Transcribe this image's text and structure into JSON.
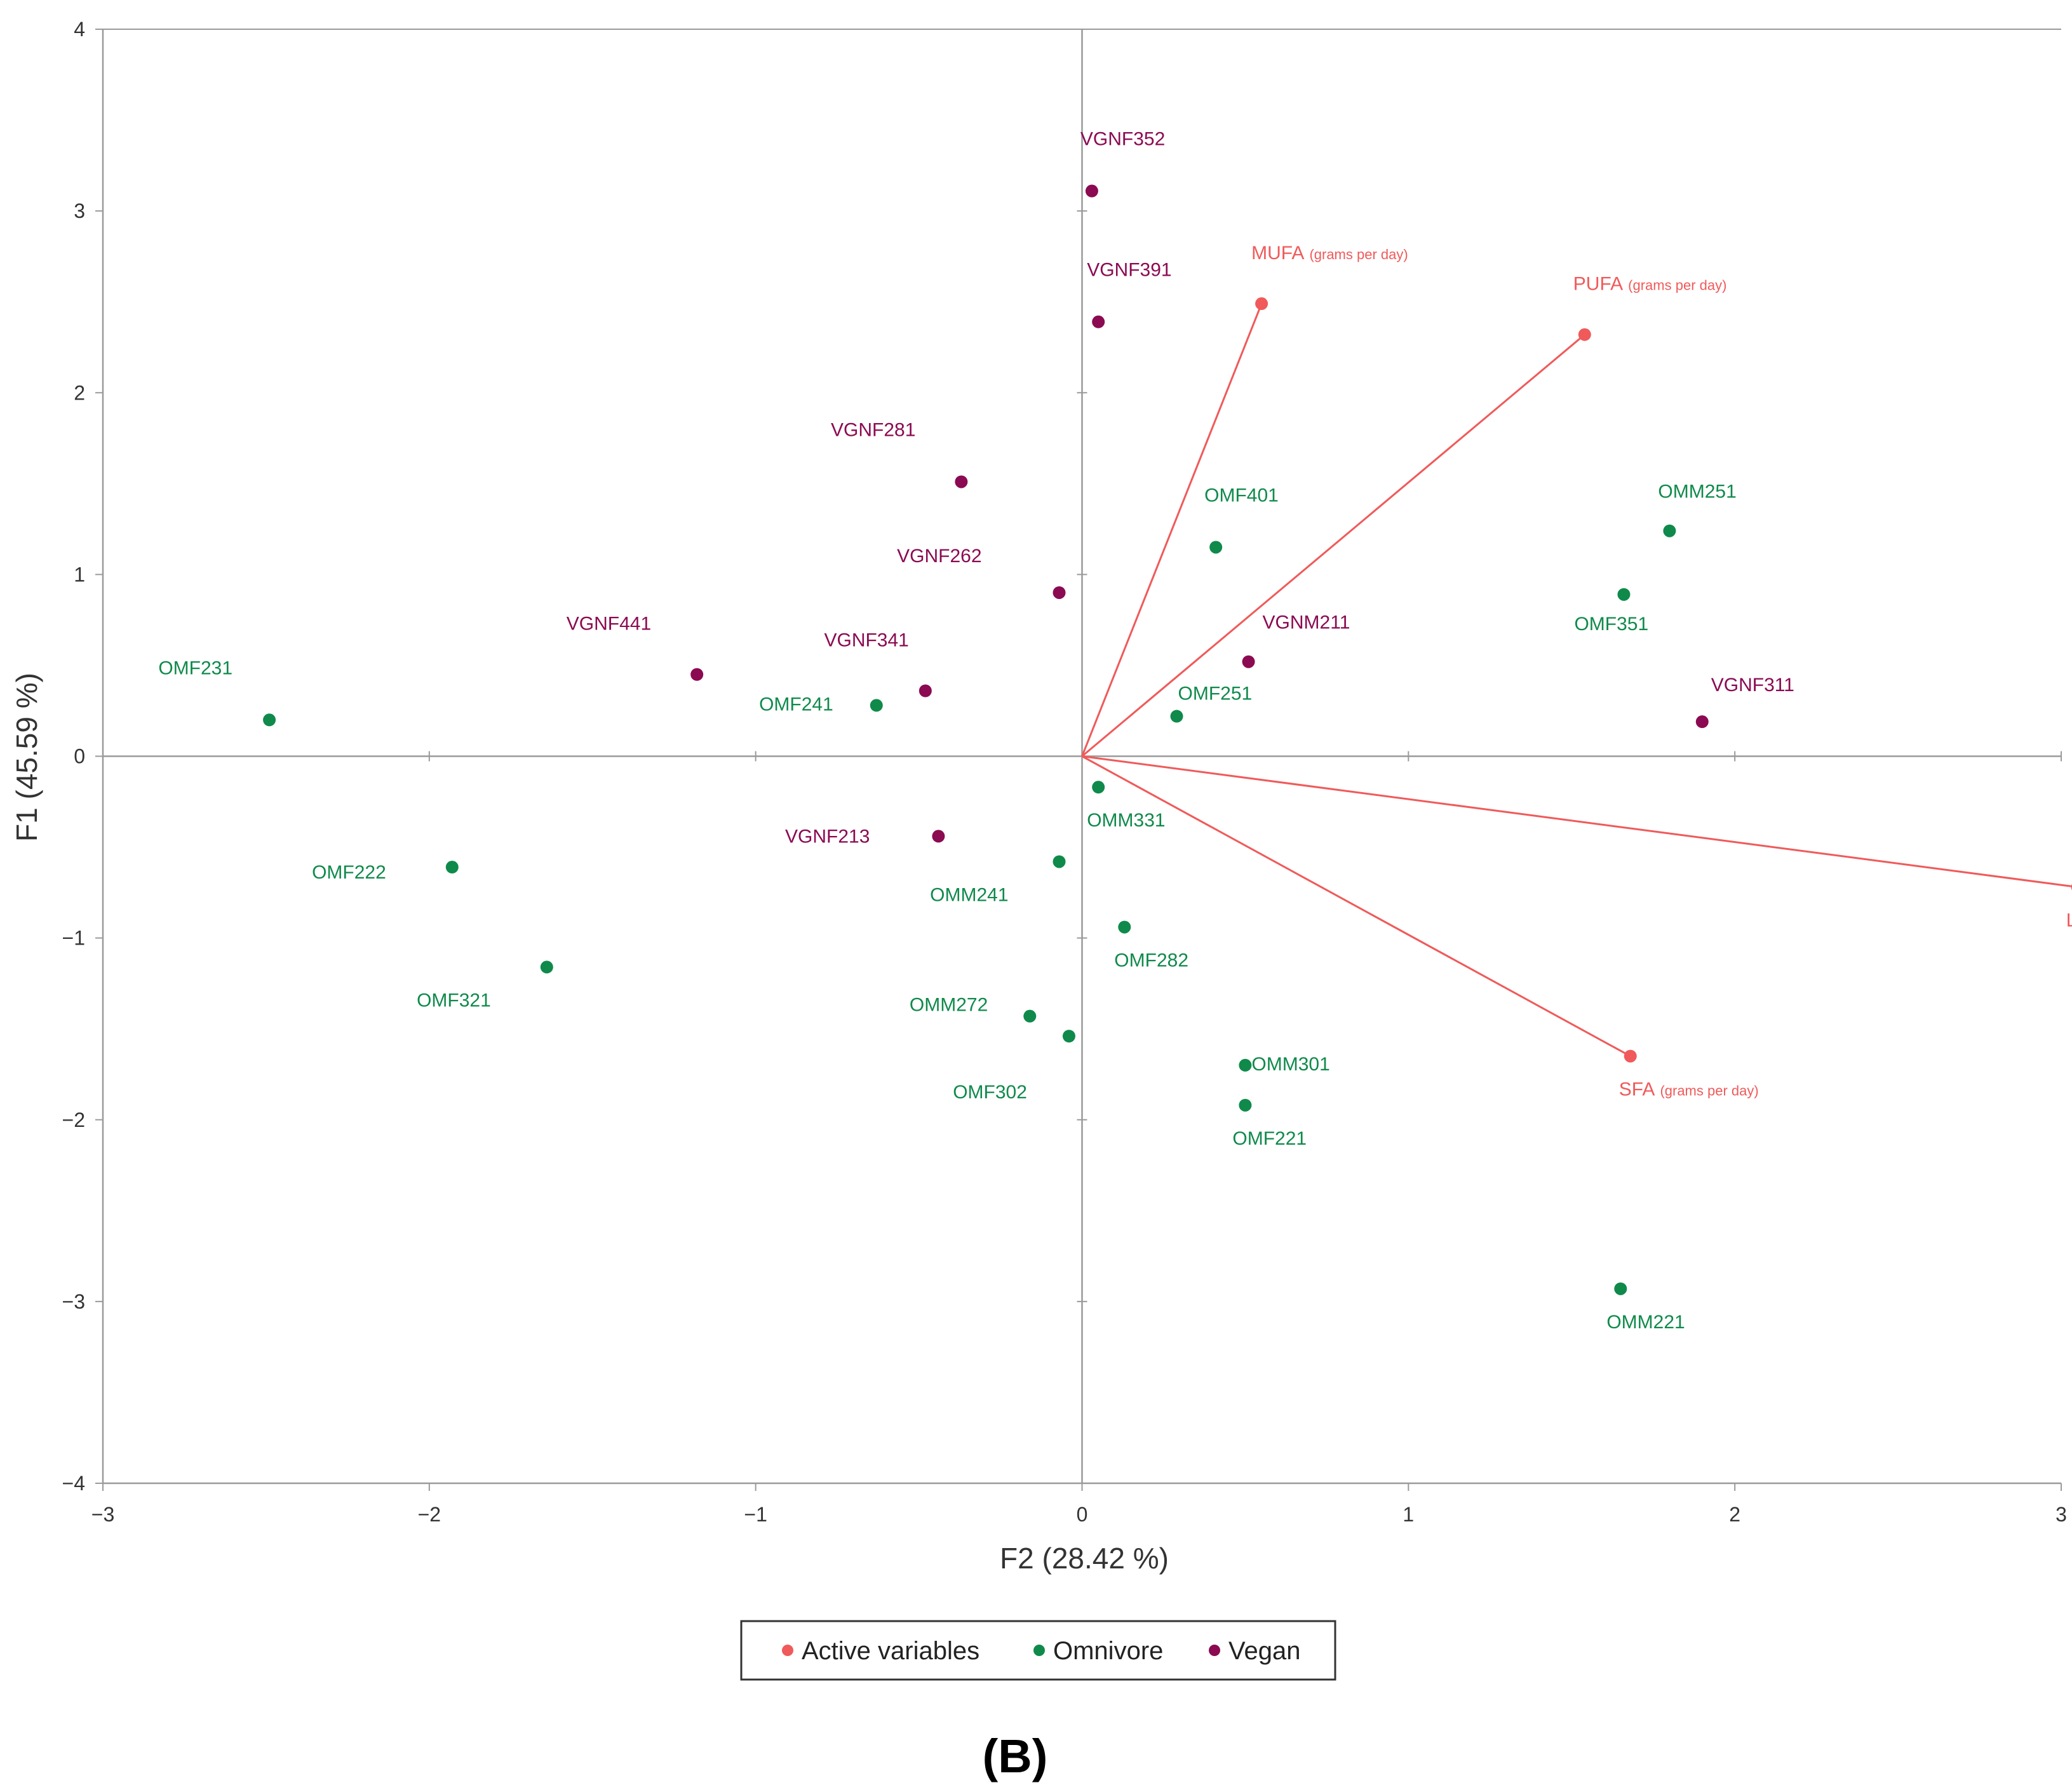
{
  "chart_data": {
    "type": "scatter",
    "subtype": "pca-biplot",
    "xlabel": "F2 (28.42 %)",
    "ylabel": "F1 (45.59 %)",
    "xlim": [
      -3,
      3
    ],
    "ylim": [
      -4,
      4
    ],
    "xticks": [
      "−3",
      "−2",
      "−1",
      "0",
      "1",
      "2",
      "3"
    ],
    "yticks": [
      "4",
      "3",
      "2",
      "1",
      "0",
      "−1",
      "−2",
      "−3",
      "−4"
    ],
    "colors": {
      "active": "#f05a5a",
      "omnivore": "#0f8a4b",
      "vegan": "#8b0a52",
      "axis": "#9a9a9a"
    },
    "legend": {
      "position": "bottom-center",
      "items": [
        {
          "label": "Active variables",
          "group": "active"
        },
        {
          "label": "Omnivore",
          "group": "omnivore"
        },
        {
          "label": "Vegan",
          "group": "vegan"
        }
      ]
    },
    "active_variables": [
      {
        "name": "MUFA",
        "unit": "(grams per day)",
        "x": 0.55,
        "y": 2.49
      },
      {
        "name": "PUFA",
        "unit": "(grams per day)",
        "x": 1.54,
        "y": 2.32
      },
      {
        "name": "LPL activity",
        "unit": "",
        "x": 3.05,
        "y": -0.72
      },
      {
        "name": "SFA",
        "unit": "(grams per day)",
        "x": 1.68,
        "y": -1.65
      }
    ],
    "observations": [
      {
        "label": "VGNF352",
        "group": "vegan",
        "x": 0.03,
        "y": 3.11
      },
      {
        "label": "VGNF391",
        "group": "vegan",
        "x": 0.05,
        "y": 2.39
      },
      {
        "label": "VGNF281",
        "group": "vegan",
        "x": -0.37,
        "y": 1.51
      },
      {
        "label": "VGNF262",
        "group": "vegan",
        "x": -0.07,
        "y": 0.9
      },
      {
        "label": "VGNF441",
        "group": "vegan",
        "x": -1.18,
        "y": 0.45
      },
      {
        "label": "VGNF341",
        "group": "vegan",
        "x": -0.48,
        "y": 0.36
      },
      {
        "label": "VGNM211",
        "group": "vegan",
        "x": 0.51,
        "y": 0.52
      },
      {
        "label": "VGNF311",
        "group": "vegan",
        "x": 1.9,
        "y": 0.19
      },
      {
        "label": "VGNF213",
        "group": "vegan",
        "x": -0.44,
        "y": -0.44
      },
      {
        "label": "OMF401",
        "group": "omnivore",
        "x": 0.41,
        "y": 1.15
      },
      {
        "label": "OMM251",
        "group": "omnivore",
        "x": 1.8,
        "y": 1.24
      },
      {
        "label": "OMF351",
        "group": "omnivore",
        "x": 1.66,
        "y": 0.89
      },
      {
        "label": "OMF231",
        "group": "omnivore",
        "x": -2.49,
        "y": 0.2
      },
      {
        "label": "OMF241",
        "group": "omnivore",
        "x": -0.63,
        "y": 0.28
      },
      {
        "label": "OMF251",
        "group": "omnivore",
        "x": 0.29,
        "y": 0.22
      },
      {
        "label": "OMM331",
        "group": "omnivore",
        "x": 0.05,
        "y": -0.17
      },
      {
        "label": "OMF222",
        "group": "omnivore",
        "x": -1.93,
        "y": -0.61
      },
      {
        "label": "OMM241",
        "group": "omnivore",
        "x": -0.07,
        "y": -0.58
      },
      {
        "label": "OMF282",
        "group": "omnivore",
        "x": 0.13,
        "y": -0.94
      },
      {
        "label": "OMF321",
        "group": "omnivore",
        "x": -1.64,
        "y": -1.16
      },
      {
        "label": "OMM272",
        "group": "omnivore",
        "x": -0.16,
        "y": -1.43
      },
      {
        "label": "OMF302",
        "group": "omnivore",
        "x": -0.04,
        "y": -1.54
      },
      {
        "label": "OMM301",
        "group": "omnivore",
        "x": 0.5,
        "y": -1.7
      },
      {
        "label": "OMF221",
        "group": "omnivore",
        "x": 0.5,
        "y": -1.92
      },
      {
        "label": "OMM221",
        "group": "omnivore",
        "x": 1.65,
        "y": -2.93
      }
    ]
  },
  "panel_label": "(B)"
}
